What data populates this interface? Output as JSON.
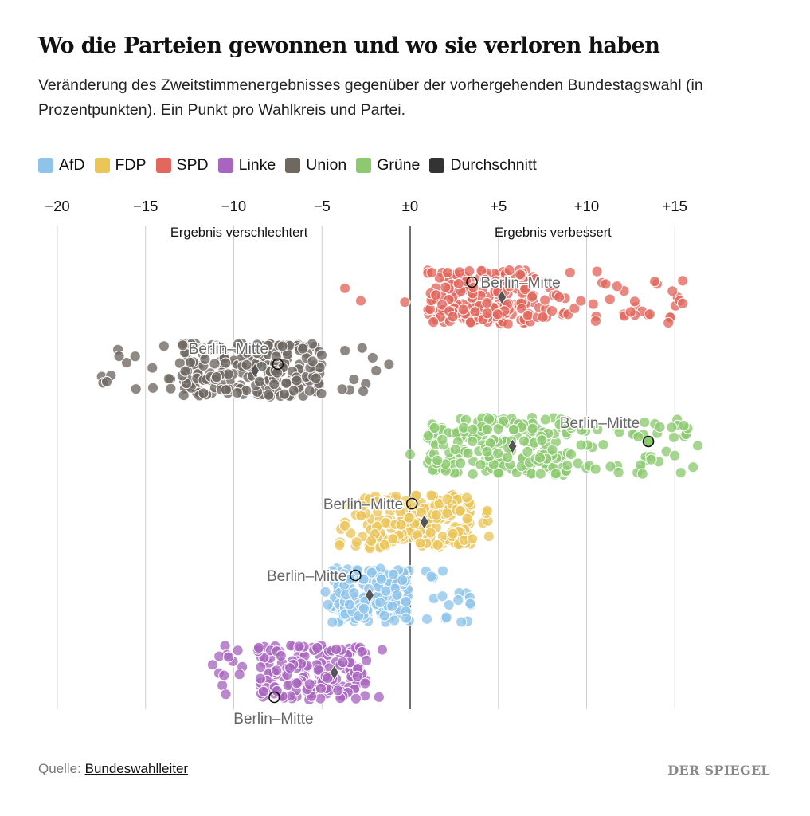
{
  "header": {
    "title": "Wo die Parteien gewonnen und wo sie verloren haben",
    "subtitle": "Veränderung des Zweitstimmenergebnisses gegenüber der vorhergehenden Bundestagswahl (in Prozentpunkten). Ein Punkt pro Wahlkreis und Partei."
  },
  "legend": [
    {
      "label": "AfD",
      "color": "#8ec4ea"
    },
    {
      "label": "FDP",
      "color": "#ebc55a"
    },
    {
      "label": "SPD",
      "color": "#e2675c"
    },
    {
      "label": "Linke",
      "color": "#a865bf"
    },
    {
      "label": "Union",
      "color": "#6e6861"
    },
    {
      "label": "Grüne",
      "color": "#8cc96f"
    },
    {
      "label": "Durchschnitt",
      "color": "#333333"
    }
  ],
  "chart_data": {
    "type": "scatter",
    "title": "Wo die Parteien gewonnen und wo sie verloren haben",
    "xlim": [
      -20,
      16
    ],
    "x_ticks": [
      -20,
      -15,
      -10,
      -5,
      0,
      5,
      10,
      15
    ],
    "x_tick_labels": [
      "−20",
      "−15",
      "−10",
      "−5",
      "±0",
      "+5",
      "+10",
      "+15"
    ],
    "annotation_left": "Ergebnis verschlechtert",
    "annotation_right": "Ergebnis verbessert",
    "highlight_label": "Berlin–Mitte",
    "grid": true,
    "series": [
      {
        "name": "SPD",
        "color": "#e2675c",
        "core": [
          1,
          7
        ],
        "tail": [
          7,
          15.5
        ],
        "outliers": [
          -3.7,
          -0.3,
          -2.8
        ],
        "average": 5.2,
        "highlight": 3.5,
        "label_side": "right",
        "n": 250
      },
      {
        "name": "Union",
        "color": "#6e6861",
        "core": [
          -13,
          -5
        ],
        "tail": [
          -17.5,
          -1.5
        ],
        "outliers": [
          -17.2,
          -16.5,
          -1.2
        ],
        "average": -8.8,
        "highlight": -7.5,
        "label_side": "left-above",
        "n": 250
      },
      {
        "name": "Grüne",
        "color": "#8cc96f",
        "core": [
          1,
          9
        ],
        "tail": [
          9,
          16.3
        ],
        "outliers": [
          0,
          16.3
        ],
        "average": 5.8,
        "highlight": 13.5,
        "label_side": "above-left",
        "n": 250
      },
      {
        "name": "FDP",
        "color": "#ebc55a",
        "core": [
          -2.8,
          3.5
        ],
        "tail": [
          -4,
          4.5
        ],
        "outliers": [
          -3.7,
          -4
        ],
        "average": 0.8,
        "highlight": 0.1,
        "label_side": "left",
        "n": 220
      },
      {
        "name": "AfD",
        "color": "#8ec4ea",
        "core": [
          -4.5,
          0
        ],
        "tail": [
          -5,
          3.5
        ],
        "outliers": [
          2.2,
          3.4
        ],
        "average": -2.3,
        "highlight": -3.1,
        "label_side": "left",
        "n": 200
      },
      {
        "name": "Linke",
        "color": "#a865bf",
        "core": [
          -8.5,
          -2.5
        ],
        "tail": [
          -11.2,
          -1.5
        ],
        "outliers": [
          -11.2,
          -10.3
        ],
        "average": -4.3,
        "highlight": -7.7,
        "label_side": "below",
        "n": 190
      }
    ]
  },
  "footer": {
    "source_prefix": "Quelle:",
    "source_link": "Bundeswahlleiter",
    "brand": "DER SPIEGEL"
  }
}
